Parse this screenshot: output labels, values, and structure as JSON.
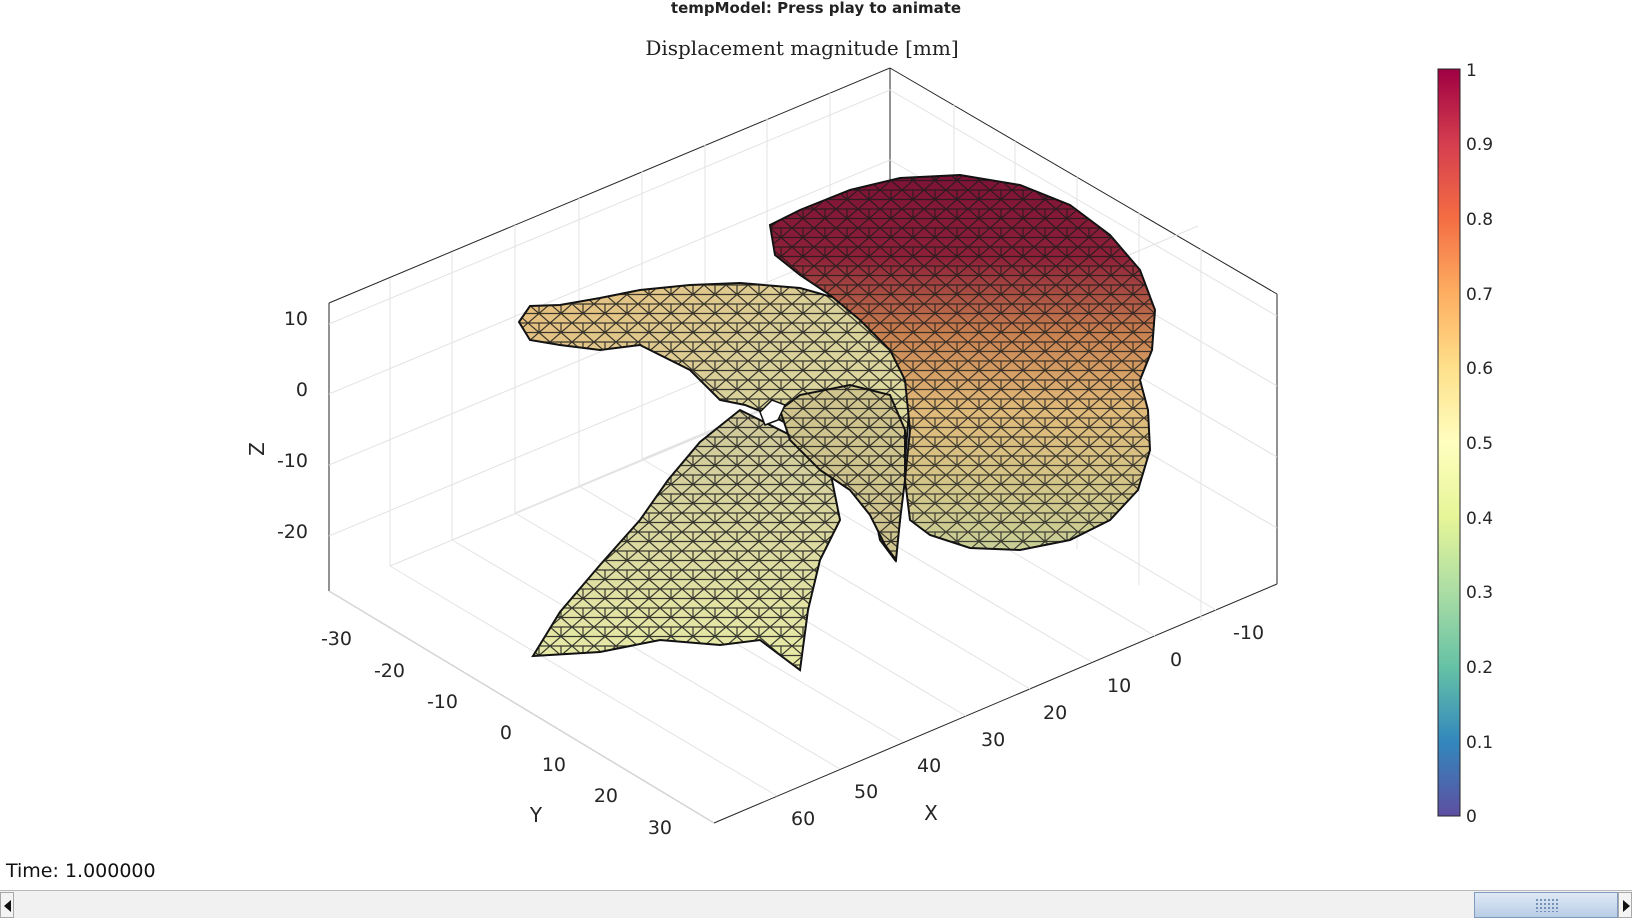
{
  "window": {
    "title": "tempModel: Press play to animate"
  },
  "plot": {
    "title": "Displacement magnitude [mm]",
    "axes": {
      "x": {
        "label": "X",
        "ticks": [
          "-10",
          "0",
          "10",
          "20",
          "30",
          "40",
          "50",
          "60"
        ]
      },
      "y": {
        "label": "Y",
        "ticks": [
          "-30",
          "-20",
          "-10",
          "0",
          "10",
          "20",
          "30"
        ]
      },
      "z": {
        "label": "Z",
        "ticks": [
          "10",
          "0",
          "-10",
          "-20"
        ]
      },
      "grid": "on"
    },
    "colorbar": {
      "ticks": [
        "1",
        "0.9",
        "0.8",
        "0.7",
        "0.6",
        "0.5",
        "0.4",
        "0.3",
        "0.2",
        "0.1",
        "0"
      ],
      "range": [
        0,
        1
      ],
      "colormap": [
        "#5e4fa2",
        "#3288bd",
        "#66c2a5",
        "#abdda4",
        "#e6f598",
        "#ffffbf",
        "#fee08b",
        "#fdae61",
        "#f46d43",
        "#d53e4f",
        "#9e0142"
      ]
    },
    "surface": {
      "edge_color": "#000000",
      "shading": "faceted"
    }
  },
  "time": {
    "text": "Time: 1.000000",
    "value": 1.0
  },
  "scrollbar": {
    "position": 0.93,
    "left_icon": "arrow-left-icon",
    "right_icon": "arrow-right-icon"
  }
}
